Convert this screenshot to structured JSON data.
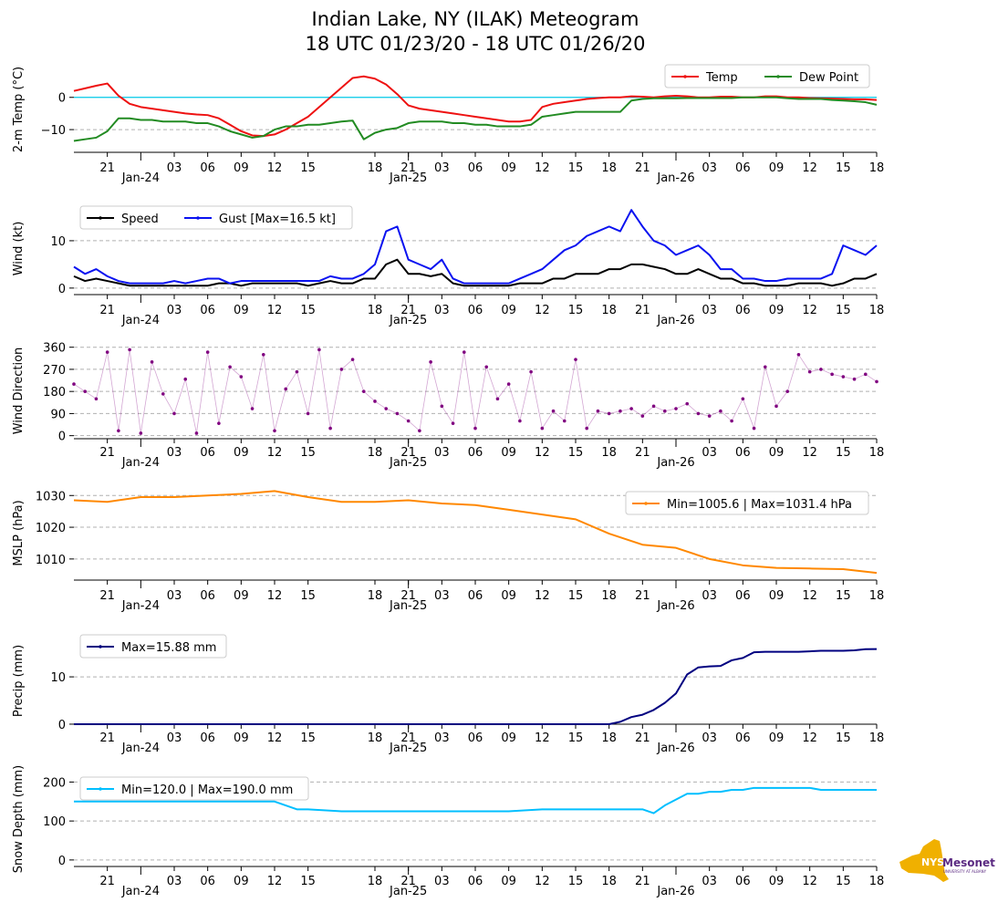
{
  "title": {
    "line1": "Indian Lake, NY (ILAK) Meteogram",
    "line2": "18 UTC 01/23/20 - 18 UTC 01/26/20"
  },
  "x_ticks": [
    "21",
    "03",
    "06",
    "09",
    "12",
    "15",
    "18",
    "21",
    "03",
    "06",
    "09",
    "12",
    "15",
    "18",
    "21",
    "03",
    "06",
    "09",
    "12",
    "15",
    "18"
  ],
  "x_dates": [
    "Jan-24",
    "Jan-25",
    "Jan-26"
  ],
  "logo": {
    "badge": "NYS",
    "name": "Mesonet",
    "sub": "UNIVERSITY AT ALBANY",
    "name_color": "#5b2a82",
    "state_color": "#f0b000"
  },
  "chart_data": [
    {
      "id": "temp",
      "type": "line",
      "ylabel": "2-m Temp (°C)",
      "ylim": [
        -14.5,
        7
      ],
      "yticks": [
        0,
        -10
      ],
      "ytick_labels": [
        "0",
        "−10"
      ],
      "grid": "dashed horizontal",
      "reference_line": {
        "y": 0,
        "color": "#00c8e8"
      },
      "legend_position": "top-right",
      "series": [
        {
          "name": "Temp",
          "color": "#ee1111",
          "x": [
            0,
            1,
            2,
            3,
            4,
            5,
            6,
            7,
            8,
            9,
            10,
            11,
            12,
            13,
            14,
            15,
            16,
            17,
            18,
            19,
            20,
            21,
            22,
            23,
            24,
            25,
            26,
            27,
            28,
            29,
            30,
            31,
            32,
            33,
            34,
            35,
            36,
            37,
            38,
            39,
            40,
            41,
            42,
            43,
            44,
            45,
            46,
            47,
            48,
            49,
            50,
            51,
            52,
            53,
            54,
            55,
            56,
            57,
            58,
            59,
            60,
            61,
            62,
            63,
            64,
            65,
            66,
            67,
            68,
            69,
            70,
            71,
            72
          ],
          "values": [
            2,
            2.8,
            3.6,
            4.3,
            0.5,
            -2,
            -3,
            -3.5,
            -4,
            -4.5,
            -5,
            -5.3,
            -5.5,
            -6.5,
            -8.5,
            -10.5,
            -11.8,
            -12,
            -11.5,
            -10,
            -8,
            -6,
            -3,
            0,
            3,
            6,
            6.5,
            5.8,
            4,
            1,
            -2.5,
            -3.5,
            -4,
            -4.5,
            -5,
            -5.5,
            -6,
            -6.5,
            -7,
            -7.5,
            -7.5,
            -7,
            -3,
            -2,
            -1.5,
            -1,
            -0.5,
            -0.2,
            0,
            0,
            0.3,
            0.2,
            0,
            0.3,
            0.5,
            0.3,
            0,
            0,
            0.2,
            0.2,
            0,
            0,
            0.3,
            0.3,
            0,
            0,
            -0.2,
            -0.3,
            -0.4,
            -0.5,
            -0.6,
            -0.6,
            -0.8
          ]
        },
        {
          "name": "Dew Point",
          "color": "#228b22",
          "x": [
            0,
            1,
            2,
            3,
            4,
            5,
            6,
            7,
            8,
            9,
            10,
            11,
            12,
            13,
            14,
            15,
            16,
            17,
            18,
            19,
            20,
            21,
            22,
            23,
            24,
            25,
            26,
            27,
            28,
            29,
            30,
            31,
            32,
            33,
            34,
            35,
            36,
            37,
            38,
            39,
            40,
            41,
            42,
            43,
            44,
            45,
            46,
            47,
            48,
            49,
            50,
            51,
            52,
            53,
            54,
            55,
            56,
            57,
            58,
            59,
            60,
            61,
            62,
            63,
            64,
            65,
            66,
            67,
            68,
            69,
            70,
            71,
            72
          ],
          "values": [
            -13.5,
            -13,
            -12.5,
            -10.5,
            -6.5,
            -6.5,
            -7,
            -7,
            -7.5,
            -7.5,
            -7.5,
            -8,
            -8,
            -9,
            -10.5,
            -11.5,
            -12.5,
            -12,
            -10,
            -9,
            -9,
            -8.5,
            -8.5,
            -8,
            -7.5,
            -7.2,
            -13,
            -11,
            -10,
            -9.5,
            -8,
            -7.5,
            -7.5,
            -7.5,
            -8,
            -8,
            -8.5,
            -8.5,
            -9,
            -9,
            -9,
            -8.5,
            -6,
            -5.5,
            -5,
            -4.5,
            -4.5,
            -4.5,
            -4.5,
            -4.5,
            -1,
            -0.5,
            -0.3,
            -0.3,
            -0.3,
            -0.2,
            -0.2,
            -0.2,
            -0.2,
            -0.2,
            0,
            0,
            0,
            0,
            -0.3,
            -0.5,
            -0.5,
            -0.5,
            -0.8,
            -1,
            -1.2,
            -1.5,
            -2.3
          ]
        }
      ]
    },
    {
      "id": "wind",
      "type": "line",
      "ylabel": "Wind (kt)",
      "ylim": [
        -0.8,
        17.5
      ],
      "yticks": [
        10,
        0
      ],
      "ytick_labels": [
        "10",
        "0"
      ],
      "grid": "dashed horizontal",
      "legend_position": "top-left",
      "series": [
        {
          "name": "Speed",
          "color": "#000000",
          "x": [
            0,
            1,
            2,
            3,
            4,
            5,
            6,
            7,
            8,
            9,
            10,
            11,
            12,
            13,
            14,
            15,
            16,
            17,
            18,
            19,
            20,
            21,
            22,
            23,
            24,
            25,
            26,
            27,
            28,
            29,
            30,
            31,
            32,
            33,
            34,
            35,
            36,
            37,
            38,
            39,
            40,
            41,
            42,
            43,
            44,
            45,
            46,
            47,
            48,
            49,
            50,
            51,
            52,
            53,
            54,
            55,
            56,
            57,
            58,
            59,
            60,
            61,
            62,
            63,
            64,
            65,
            66,
            67,
            68,
            69,
            70,
            71,
            72
          ],
          "values": [
            2.5,
            1.5,
            2,
            1.5,
            1,
            0.5,
            0.5,
            0.5,
            0.5,
            0.5,
            0.5,
            0.5,
            0.5,
            1,
            1,
            0.5,
            1,
            1,
            1,
            1,
            1,
            0.5,
            1,
            1.5,
            1,
            1,
            2,
            2,
            5,
            6,
            3,
            3,
            2.5,
            3,
            1,
            0.5,
            0.5,
            0.5,
            0.5,
            0.5,
            1,
            1,
            1,
            2,
            2,
            3,
            3,
            3,
            4,
            4,
            5,
            5,
            4.5,
            4,
            3,
            3,
            4,
            3,
            2,
            2,
            1,
            1,
            0.5,
            0.5,
            0.5,
            1,
            1,
            1,
            0.5,
            1,
            2,
            2,
            3
          ]
        },
        {
          "name": "Gust [Max=16.5 kt]",
          "color": "#0a12f0",
          "x": [
            0,
            1,
            2,
            3,
            4,
            5,
            6,
            7,
            8,
            9,
            10,
            11,
            12,
            13,
            14,
            15,
            16,
            17,
            18,
            19,
            20,
            21,
            22,
            23,
            24,
            25,
            26,
            27,
            28,
            29,
            30,
            31,
            32,
            33,
            34,
            35,
            36,
            37,
            38,
            39,
            40,
            41,
            42,
            43,
            44,
            45,
            46,
            47,
            48,
            49,
            50,
            51,
            52,
            53,
            54,
            55,
            56,
            57,
            58,
            59,
            60,
            61,
            62,
            63,
            64,
            65,
            66,
            67,
            68,
            69,
            70,
            71,
            72
          ],
          "values": [
            4.5,
            3,
            4,
            2.5,
            1.5,
            1,
            1,
            1,
            1,
            1.5,
            1,
            1.5,
            2,
            2,
            1,
            1.5,
            1.5,
            1.5,
            1.5,
            1.5,
            1.5,
            1.5,
            1.5,
            2.5,
            2,
            2,
            3,
            5,
            12,
            13,
            6,
            5,
            4,
            6,
            2,
            1,
            1,
            1,
            1,
            1,
            2,
            3,
            4,
            6,
            8,
            9,
            11,
            12,
            13,
            12,
            16.5,
            13,
            10,
            9,
            7,
            8,
            9,
            7,
            4,
            4,
            2,
            2,
            1.5,
            1.5,
            2,
            2,
            2,
            2,
            3,
            9,
            8,
            7,
            9
          ]
        }
      ]
    },
    {
      "id": "wind_direction",
      "type": "scatter",
      "ylabel": "Wind Direction",
      "ylim": [
        -5,
        370
      ],
      "yticks": [
        360,
        270,
        180,
        90,
        0
      ],
      "ytick_labels": [
        "360",
        "270",
        "180",
        "90",
        "0"
      ],
      "grid": "dashed horizontal",
      "series": [
        {
          "name": "Wind Direction",
          "color": "#800080",
          "x": [
            0,
            1,
            2,
            3,
            4,
            5,
            6,
            7,
            8,
            9,
            10,
            11,
            12,
            13,
            14,
            15,
            16,
            17,
            18,
            19,
            20,
            21,
            22,
            23,
            24,
            25,
            26,
            27,
            28,
            29,
            30,
            31,
            32,
            33,
            34,
            35,
            36,
            37,
            38,
            39,
            40,
            41,
            42,
            43,
            44,
            45,
            46,
            47,
            48,
            49,
            50,
            51,
            52,
            53,
            54,
            55,
            56,
            57,
            58,
            59,
            60,
            61,
            62,
            63,
            64,
            65,
            66,
            67,
            68,
            69,
            70,
            71,
            72
          ],
          "values": [
            210,
            180,
            150,
            340,
            20,
            350,
            10,
            300,
            170,
            90,
            230,
            10,
            340,
            50,
            280,
            240,
            110,
            330,
            20,
            190,
            260,
            90,
            350,
            30,
            270,
            310,
            180,
            140,
            110,
            90,
            60,
            20,
            300,
            120,
            50,
            340,
            30,
            280,
            150,
            210,
            60,
            260,
            30,
            100,
            60,
            310,
            30,
            100,
            90,
            100,
            110,
            80,
            120,
            100,
            110,
            130,
            90,
            80,
            100,
            60,
            150,
            30,
            280,
            120,
            180,
            330,
            260,
            270,
            250,
            240,
            230,
            250,
            220
          ]
        }
      ]
    },
    {
      "id": "mslp",
      "type": "line",
      "ylabel": "MSLP (hPa)",
      "ylim": [
        1004.5,
        1031.8
      ],
      "yticks": [
        1030,
        1020,
        1010
      ],
      "ytick_labels": [
        "1030",
        "1020",
        "1010"
      ],
      "grid": "dashed horizontal",
      "legend_position": "upper-right",
      "series": [
        {
          "name": "Min=1005.6 | Max=1031.4 hPa",
          "color": "#ff8800",
          "x": [
            0,
            3,
            6,
            9,
            12,
            15,
            18,
            21,
            24,
            27,
            30,
            33,
            36,
            39,
            42,
            45,
            48,
            51,
            54,
            57,
            60,
            63,
            66,
            69,
            72
          ],
          "values": [
            1028.5,
            1028,
            1029.5,
            1029.5,
            1030,
            1030.5,
            1031.4,
            1029.5,
            1028,
            1028,
            1028.5,
            1027.5,
            1027,
            1025.5,
            1024,
            1022.5,
            1018,
            1014.5,
            1013.5,
            1010,
            1008,
            1007.2,
            1007,
            1006.8,
            1005.6
          ]
        }
      ]
    },
    {
      "id": "precip",
      "type": "line",
      "ylabel": "Precip (mm)",
      "ylim": [
        -0.2,
        18.5
      ],
      "yticks": [
        10,
        0
      ],
      "ytick_labels": [
        "10",
        "0"
      ],
      "grid": "dashed horizontal",
      "legend_position": "top-left",
      "series": [
        {
          "name": "Max=15.88 mm",
          "color": "#000080",
          "x": [
            0,
            3,
            6,
            9,
            12,
            15,
            18,
            21,
            24,
            27,
            30,
            33,
            36,
            39,
            42,
            45,
            48,
            49,
            50,
            51,
            52,
            53,
            54,
            55,
            56,
            57,
            58,
            59,
            60,
            61,
            62,
            63,
            64,
            65,
            66,
            67,
            68,
            69,
            70,
            71,
            72
          ],
          "values": [
            0,
            0,
            0,
            0,
            0,
            0,
            0,
            0,
            0,
            0,
            0,
            0,
            0,
            0,
            0,
            0,
            0,
            0.5,
            1.5,
            2,
            3,
            4.5,
            6.5,
            10.5,
            12,
            12.2,
            12.3,
            13.5,
            14,
            15.2,
            15.3,
            15.3,
            15.3,
            15.3,
            15.4,
            15.5,
            15.5,
            15.5,
            15.6,
            15.85,
            15.88
          ]
        }
      ]
    },
    {
      "id": "snow_depth",
      "type": "line",
      "ylabel": "Snow Depth (mm)",
      "ylim": [
        -5,
        215
      ],
      "yticks": [
        200,
        100,
        0
      ],
      "ytick_labels": [
        "200",
        "100",
        "0"
      ],
      "grid": "dashed horizontal",
      "legend_position": "top-left",
      "series": [
        {
          "name": "Min=120.0 | Max=190.0 mm",
          "color": "#00bfff",
          "x": [
            0,
            3,
            6,
            9,
            12,
            15,
            18,
            19,
            20,
            21,
            24,
            27,
            30,
            33,
            36,
            39,
            42,
            45,
            48,
            51,
            52,
            53,
            55,
            56,
            57,
            58,
            59,
            60,
            61,
            62,
            63,
            64,
            65,
            66,
            67,
            68,
            69,
            70,
            71,
            72
          ],
          "values": [
            150,
            150,
            150,
            150,
            150,
            150,
            150,
            140,
            130,
            130,
            125,
            125,
            125,
            125,
            125,
            125,
            130,
            130,
            130,
            130,
            120,
            140,
            170,
            170,
            175,
            175,
            180,
            180,
            185,
            185,
            185,
            185,
            185,
            185,
            180,
            180,
            180,
            180,
            180,
            180
          ]
        }
      ]
    }
  ]
}
